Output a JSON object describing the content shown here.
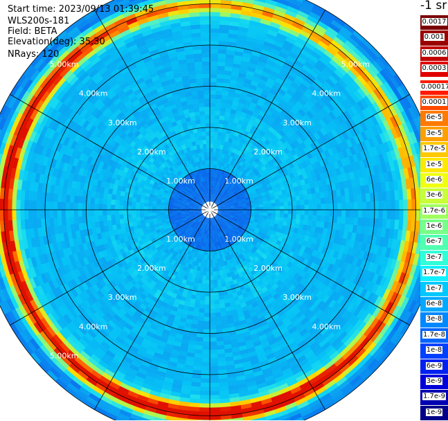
{
  "info": {
    "start_time": "Start time: 2023/09/13 01:39:45",
    "instrument": "WLS200s-181",
    "field": "Field: BETA",
    "elevation": "Elevation(deg): 35.30",
    "nrays": "NRays: 120"
  },
  "colorbar": {
    "units": "-1 sr",
    "upper_levels": [
      {
        "label": "0.0017",
        "color": "#7a0000"
      },
      {
        "label": "0.001",
        "color": "#9a0000"
      },
      {
        "label": "0.0006",
        "color": "#c00000"
      },
      {
        "label": "0.0003",
        "color": "#e00000"
      }
    ],
    "levels": [
      {
        "label": "0.00017",
        "color": "#ff1a00"
      },
      {
        "label": "0.0001",
        "color": "#ff4a00"
      },
      {
        "label": "6e-5",
        "color": "#ff7a00"
      },
      {
        "label": "3e-5",
        "color": "#ffa000"
      },
      {
        "label": "1.7e-5",
        "color": "#ffc800"
      },
      {
        "label": "1e-5",
        "color": "#ffe800"
      },
      {
        "label": "6e-6",
        "color": "#f0ff10"
      },
      {
        "label": "3e-6",
        "color": "#c8ff38"
      },
      {
        "label": "1.7e-6",
        "color": "#a0ff60"
      },
      {
        "label": "1e-6",
        "color": "#78ff88"
      },
      {
        "label": "6e-7",
        "color": "#50ffb0"
      },
      {
        "label": "3e-7",
        "color": "#30ffd8"
      },
      {
        "label": "1.7e-7",
        "color": "#10f0ff"
      },
      {
        "label": "1e-7",
        "color": "#00c8ff"
      },
      {
        "label": "6e-8",
        "color": "#00a8ff"
      },
      {
        "label": "3e-8",
        "color": "#0088ff"
      },
      {
        "label": "1.7e-8",
        "color": "#0064ff"
      },
      {
        "label": "1e-8",
        "color": "#0040ff"
      },
      {
        "label": "6e-9",
        "color": "#0020f0"
      },
      {
        "label": "3e-9",
        "color": "#0000d8"
      },
      {
        "label": "1.7e-9",
        "color": "#0000b0"
      },
      {
        "label": "1e-9",
        "color": "#000088"
      }
    ]
  },
  "chart_data": {
    "type": "heatmap",
    "projection": "polar (PPI)",
    "range_rings_km": [
      1,
      2,
      3,
      4,
      5
    ],
    "range_ring_labels": [
      "1.00km",
      "2.00km",
      "3.00km",
      "4.00km",
      "5.00km"
    ],
    "max_range_km": 5.6,
    "azimuth_spokes_deg": [
      0,
      30,
      60,
      90,
      120,
      150,
      180,
      210,
      240,
      270,
      300,
      330
    ],
    "nrays": 120,
    "value_regimes": [
      {
        "range_km": [
          0,
          1.0
        ],
        "typical_color": "#0a6cf0"
      },
      {
        "range_km": [
          1.0,
          4.5
        ],
        "typical_color": "#06bdf2"
      },
      {
        "range_km": [
          4.5,
          5.3
        ],
        "typical_color": "#ffb400",
        "note": "enhanced ring, strongest toward south and west"
      },
      {
        "range_km": [
          5.3,
          5.6
        ],
        "typical_color": "#0a88e8"
      }
    ]
  }
}
